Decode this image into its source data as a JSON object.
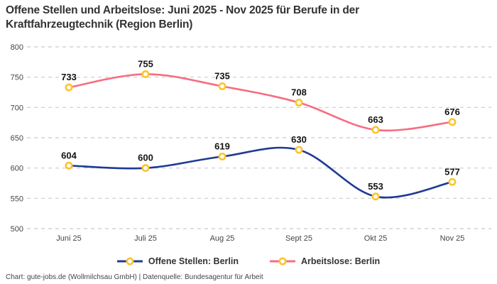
{
  "title": "Offene Stellen und Arbeitslose: Juni 2025 - Nov 2025 für Berufe in der Kraftfahrzeugtechnik (Region Berlin)",
  "footer": "Chart: gute-jobs.de (Wollmilchsau GmbH) | Datenquelle: Bundesagentur für Arbeit",
  "colors": {
    "grid": "#cbcbcb",
    "marker_stroke": "#FCC42C",
    "marker_fill": "#ffffff",
    "title_text": "#333333",
    "axis_text": "#454545",
    "point_label_text": "#141414"
  },
  "chart_data": {
    "type": "line",
    "title": "Offene Stellen und Arbeitslose: Juni 2025 - Nov 2025 für Berufe in der Kraftfahrzeugtechnik (Region Berlin)",
    "categories": [
      "Juni 25",
      "Juli 25",
      "Aug 25",
      "Sept 25",
      "Okt 25",
      "Nov 25"
    ],
    "series": [
      {
        "name": "Offene Stellen: Berlin",
        "values": [
          604,
          600,
          619,
          630,
          553,
          577
        ],
        "color": "#1F3A93"
      },
      {
        "name": "Arbeitslose: Berlin",
        "values": [
          733,
          755,
          735,
          708,
          663,
          676
        ],
        "color": "#F66D80"
      }
    ],
    "xlabel": "",
    "ylabel": "",
    "ylim": [
      500,
      800
    ],
    "y_ticks": [
      500,
      550,
      600,
      650,
      700,
      750,
      800
    ],
    "grid": true,
    "grid_style": "dashed",
    "legend_position": "bottom",
    "marker": "circle",
    "marker_color": "#FCC42C",
    "data_labels": true,
    "line_smoothing": true
  }
}
